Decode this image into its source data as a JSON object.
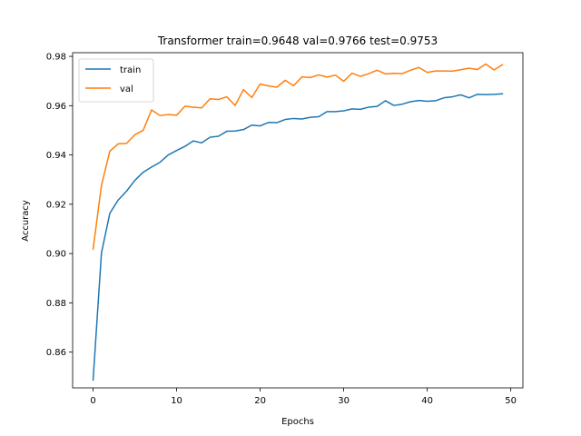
{
  "chart_data": {
    "type": "line",
    "title": "Transformer train=0.9648 val=0.9766 test=0.9753",
    "xlabel": "Epochs",
    "ylabel": "Accuracy",
    "xlim": [
      -2.45,
      51.45
    ],
    "ylim": [
      0.8455,
      0.9815
    ],
    "xticks": [
      0,
      10,
      20,
      30,
      40,
      50
    ],
    "xtick_labels": [
      "0",
      "10",
      "20",
      "30",
      "40",
      "50"
    ],
    "yticks": [
      0.86,
      0.88,
      0.9,
      0.92,
      0.94,
      0.96,
      0.98
    ],
    "ytick_labels": [
      "0.86",
      "0.88",
      "0.90",
      "0.92",
      "0.94",
      "0.96",
      "0.98"
    ],
    "grid": false,
    "legend_position": "upper left",
    "x": [
      0,
      1,
      2,
      3,
      4,
      5,
      6,
      7,
      8,
      9,
      10,
      11,
      12,
      13,
      14,
      15,
      16,
      17,
      18,
      19,
      20,
      21,
      22,
      23,
      24,
      25,
      26,
      27,
      28,
      29,
      30,
      31,
      32,
      33,
      34,
      35,
      36,
      37,
      38,
      39,
      40,
      41,
      42,
      43,
      44,
      45,
      46,
      47,
      48,
      49
    ],
    "series": [
      {
        "name": "train",
        "color": "#1f77b4",
        "values": [
          0.8487,
          0.9002,
          0.9163,
          0.9217,
          0.9253,
          0.9297,
          0.933,
          0.9351,
          0.937,
          0.94,
          0.9418,
          0.9435,
          0.9457,
          0.9449,
          0.9472,
          0.9476,
          0.9496,
          0.9497,
          0.9503,
          0.9521,
          0.9518,
          0.9532,
          0.9531,
          0.9544,
          0.9548,
          0.9546,
          0.9553,
          0.9555,
          0.9576,
          0.9576,
          0.9579,
          0.9587,
          0.9585,
          0.9594,
          0.9597,
          0.962,
          0.9601,
          0.9606,
          0.9616,
          0.9621,
          0.9618,
          0.962,
          0.9632,
          0.9636,
          0.9644,
          0.9632,
          0.9646,
          0.9645,
          0.9646,
          0.9648
        ]
      },
      {
        "name": "val",
        "color": "#ff7f0e",
        "values": [
          0.9018,
          0.9276,
          0.9415,
          0.9445,
          0.9447,
          0.9482,
          0.95,
          0.9583,
          0.956,
          0.9564,
          0.9561,
          0.9598,
          0.9594,
          0.9591,
          0.9628,
          0.9625,
          0.9636,
          0.9601,
          0.9665,
          0.9633,
          0.9688,
          0.968,
          0.9675,
          0.9703,
          0.9681,
          0.9717,
          0.9714,
          0.9725,
          0.9716,
          0.9724,
          0.9699,
          0.9732,
          0.9719,
          0.973,
          0.9744,
          0.9729,
          0.9731,
          0.973,
          0.9744,
          0.9755,
          0.9735,
          0.9741,
          0.9741,
          0.974,
          0.9746,
          0.9752,
          0.9747,
          0.9769,
          0.9745,
          0.9766
        ]
      }
    ]
  }
}
